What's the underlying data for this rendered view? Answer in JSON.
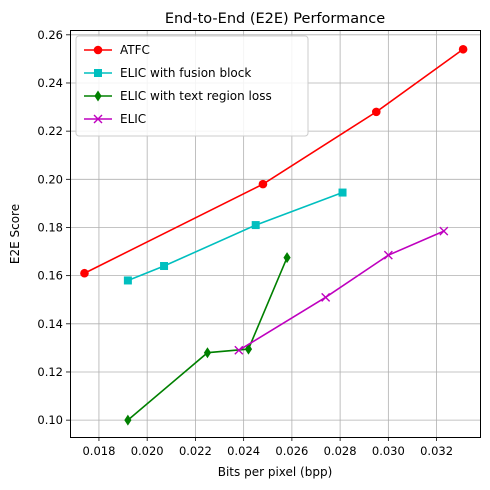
{
  "chart_data": {
    "type": "line",
    "title": "End-to-End (E2E) Performance",
    "xlabel": "Bits per pixel (bpp)",
    "ylabel": "E2E Score",
    "xlim": [
      0.0168,
      0.0338
    ],
    "ylim": [
      0.093,
      0.262
    ],
    "xticks": [
      "0.018",
      "0.020",
      "0.022",
      "0.024",
      "0.026",
      "0.028",
      "0.030",
      "0.032"
    ],
    "yticks": [
      "0.10",
      "0.12",
      "0.14",
      "0.16",
      "0.18",
      "0.20",
      "0.22",
      "0.24",
      "0.26"
    ],
    "grid": true,
    "legend_position": "top-left",
    "series": [
      {
        "name": "ATFC",
        "color": "#ff0000",
        "marker": "circle",
        "x": [
          0.0174,
          0.0248,
          0.0295,
          0.0331
        ],
        "y": [
          0.161,
          0.198,
          0.228,
          0.254
        ]
      },
      {
        "name": "ELIC with fusion block",
        "color": "#00bfbf",
        "marker": "square",
        "x": [
          0.0192,
          0.0207,
          0.0245,
          0.0281
        ],
        "y": [
          0.158,
          0.164,
          0.181,
          0.1945
        ]
      },
      {
        "name": "ELIC with text region loss",
        "color": "#008000",
        "marker": "diamond",
        "x": [
          0.0192,
          0.0225,
          0.0242,
          0.0258
        ],
        "y": [
          0.1,
          0.128,
          0.1295,
          0.1675
        ]
      },
      {
        "name": "ELIC",
        "color": "#bf00bf",
        "marker": "x",
        "x": [
          0.0238,
          0.0274,
          0.03,
          0.0323
        ],
        "y": [
          0.129,
          0.151,
          0.1685,
          0.1785
        ]
      }
    ]
  }
}
